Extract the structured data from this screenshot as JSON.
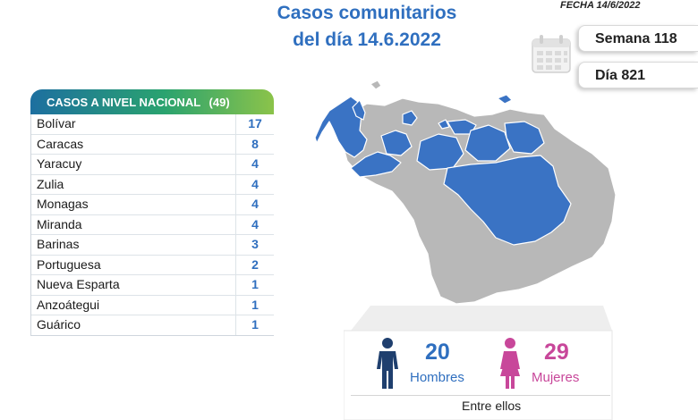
{
  "header": {
    "title_line1": "Casos comunitarios",
    "title_line2": "del día 14.6.2022",
    "fecha": "FECHA 14/6/2022",
    "semana": "Semana 118",
    "dia": "Día 821"
  },
  "table": {
    "title": "CASOS A NIVEL NACIONAL",
    "total": "(49)",
    "rows": [
      {
        "name": "Bolívar",
        "value": "17"
      },
      {
        "name": "Caracas",
        "value": "8"
      },
      {
        "name": "Yaracuy",
        "value": "4"
      },
      {
        "name": "Zulia",
        "value": "4"
      },
      {
        "name": "Monagas",
        "value": "4"
      },
      {
        "name": "Miranda",
        "value": "4"
      },
      {
        "name": "Barinas",
        "value": "3"
      },
      {
        "name": "Portuguesa",
        "value": "2"
      },
      {
        "name": "Nueva Esparta",
        "value": "1"
      },
      {
        "name": "Anzoátegui",
        "value": "1"
      },
      {
        "name": "Guárico",
        "value": "1"
      }
    ]
  },
  "summary": {
    "men_count": "20",
    "men_label": "Hombres",
    "women_count": "29",
    "women_label": "Mujeres",
    "entre_label": "Entre ellos"
  },
  "colors": {
    "title_blue": "#2f6fbf",
    "map_active": "#3a73c4",
    "map_inactive": "#b8b8b8",
    "women_pink": "#c8479a",
    "men_navy": "#1f3f6e"
  },
  "icons": [
    "calendar-icon",
    "man-icon",
    "woman-icon",
    "map-of-venezuela"
  ]
}
